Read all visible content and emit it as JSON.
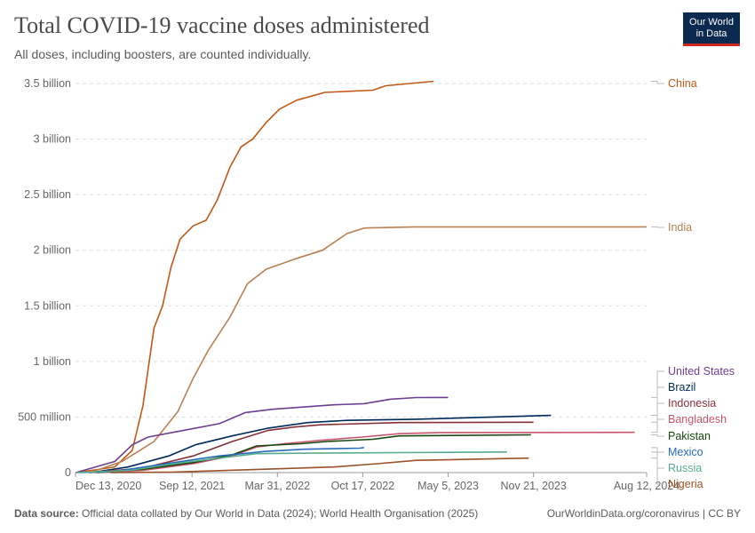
{
  "header": {
    "title": "Total COVID-19 vaccine doses administered",
    "subtitle": "All doses, including boosters, are counted individually.",
    "logo": "Our World in Data"
  },
  "footer": {
    "source_label": "Data source:",
    "source_text": "Official data collated by Our World in Data (2024); World Health Organisation (2025)",
    "right": "OurWorldinData.org/coronavirus | CC BY"
  },
  "chart_data": {
    "type": "line",
    "title": "Total COVID-19 vaccine doses administered",
    "xlim": [
      "2020-12-13",
      "2024-08-12"
    ],
    "ylim": [
      0,
      3.5
    ],
    "y_unit": "billion",
    "x_ticks": [
      {
        "date": "2020-12-13",
        "label": "Dec 13, 2020"
      },
      {
        "date": "2021-09-12",
        "label": "Sep 12, 2021"
      },
      {
        "date": "2022-03-31",
        "label": "Mar 31, 2022"
      },
      {
        "date": "2022-10-17",
        "label": "Oct 17, 2022"
      },
      {
        "date": "2023-05-05",
        "label": "May 5, 2023"
      },
      {
        "date": "2023-11-21",
        "label": "Nov 21, 2023"
      },
      {
        "date": "2024-08-12",
        "label": "Aug 12, 2024"
      }
    ],
    "y_ticks": [
      {
        "v": 0,
        "label": "0"
      },
      {
        "v": 0.5,
        "label": "500 million"
      },
      {
        "v": 1,
        "label": "1 billion"
      },
      {
        "v": 1.5,
        "label": "1.5 billion"
      },
      {
        "v": 2,
        "label": "2 billion"
      },
      {
        "v": 2.5,
        "label": "2.5 billion"
      },
      {
        "v": 3,
        "label": "3 billion"
      },
      {
        "v": 3.5,
        "label": "3.5 billion"
      }
    ],
    "grid": true,
    "legend": "right-labels",
    "series": [
      {
        "name": "China",
        "color": "#c05917",
        "points": [
          [
            "2020-12-15",
            0
          ],
          [
            "2021-03-15",
            0.05
          ],
          [
            "2021-04-25",
            0.2
          ],
          [
            "2021-05-20",
            0.6
          ],
          [
            "2021-06-15",
            1.3
          ],
          [
            "2021-07-05",
            1.5
          ],
          [
            "2021-07-25",
            1.85
          ],
          [
            "2021-08-15",
            2.1
          ],
          [
            "2021-09-15",
            2.22
          ],
          [
            "2021-10-15",
            2.27
          ],
          [
            "2021-11-10",
            2.45
          ],
          [
            "2021-12-10",
            2.75
          ],
          [
            "2022-01-05",
            2.93
          ],
          [
            "2022-02-01",
            3.0
          ],
          [
            "2022-03-05",
            3.15
          ],
          [
            "2022-04-05",
            3.27
          ],
          [
            "2022-05-15",
            3.35
          ],
          [
            "2022-07-20",
            3.42
          ],
          [
            "2022-11-10",
            3.44
          ],
          [
            "2022-12-10",
            3.48
          ],
          [
            "2023-02-05",
            3.5
          ],
          [
            "2023-04-01",
            3.52
          ]
        ]
      },
      {
        "name": "India",
        "color": "#b98052",
        "points": [
          [
            "2021-01-16",
            0
          ],
          [
            "2021-04-01",
            0.1
          ],
          [
            "2021-06-15",
            0.28
          ],
          [
            "2021-08-10",
            0.55
          ],
          [
            "2021-09-15",
            0.85
          ],
          [
            "2021-10-20",
            1.1
          ],
          [
            "2021-12-10",
            1.4
          ],
          [
            "2022-01-20",
            1.7
          ],
          [
            "2022-03-05",
            1.83
          ],
          [
            "2022-05-10",
            1.92
          ],
          [
            "2022-07-15",
            2.0
          ],
          [
            "2022-09-10",
            2.15
          ],
          [
            "2022-10-20",
            2.2
          ],
          [
            "2023-02-15",
            2.21
          ],
          [
            "2024-08-12",
            2.21
          ]
        ]
      },
      {
        "name": "United States",
        "color": "#6d3e91",
        "points": [
          [
            "2020-12-14",
            0
          ],
          [
            "2021-03-15",
            0.1
          ],
          [
            "2021-04-25",
            0.25
          ],
          [
            "2021-06-01",
            0.32
          ],
          [
            "2021-08-10",
            0.37
          ],
          [
            "2021-11-15",
            0.44
          ],
          [
            "2022-01-15",
            0.54
          ],
          [
            "2022-03-20",
            0.57
          ],
          [
            "2022-08-10",
            0.61
          ],
          [
            "2022-10-20",
            0.62
          ],
          [
            "2022-12-20",
            0.66
          ],
          [
            "2023-02-20",
            0.675
          ],
          [
            "2023-05-05",
            0.676
          ]
        ]
      },
      {
        "name": "Brazil",
        "color": "#00295b",
        "points": [
          [
            "2021-01-18",
            0
          ],
          [
            "2021-04-15",
            0.05
          ],
          [
            "2021-07-20",
            0.15
          ],
          [
            "2021-09-20",
            0.25
          ],
          [
            "2021-12-15",
            0.33
          ],
          [
            "2022-03-10",
            0.4
          ],
          [
            "2022-06-10",
            0.45
          ],
          [
            "2022-09-10",
            0.47
          ],
          [
            "2023-02-20",
            0.48
          ],
          [
            "2024-01-01",
            0.515
          ]
        ]
      },
      {
        "name": "Indonesia",
        "color": "#883039",
        "points": [
          [
            "2021-01-13",
            0
          ],
          [
            "2021-05-20",
            0.04
          ],
          [
            "2021-09-15",
            0.15
          ],
          [
            "2021-12-15",
            0.28
          ],
          [
            "2022-03-10",
            0.38
          ],
          [
            "2022-05-10",
            0.41
          ],
          [
            "2022-07-10",
            0.43
          ],
          [
            "2023-01-10",
            0.45
          ],
          [
            "2023-11-21",
            0.453
          ]
        ]
      },
      {
        "name": "Bangladesh",
        "color": "#c9546e",
        "points": [
          [
            "2021-01-27",
            0
          ],
          [
            "2021-05-20",
            0.02
          ],
          [
            "2021-09-15",
            0.08
          ],
          [
            "2021-12-15",
            0.15
          ],
          [
            "2022-02-10",
            0.23
          ],
          [
            "2022-04-15",
            0.26
          ],
          [
            "2022-07-10",
            0.29
          ],
          [
            "2022-10-15",
            0.32
          ],
          [
            "2023-01-10",
            0.35
          ],
          [
            "2023-04-20",
            0.36
          ],
          [
            "2024-07-15",
            0.362
          ]
        ]
      },
      {
        "name": "Pakistan",
        "color": "#18470f",
        "points": [
          [
            "2021-02-02",
            0
          ],
          [
            "2021-05-20",
            0.03
          ],
          [
            "2021-09-15",
            0.09
          ],
          [
            "2021-12-15",
            0.16
          ],
          [
            "2022-02-10",
            0.24
          ],
          [
            "2022-05-25",
            0.26
          ],
          [
            "2022-07-25",
            0.28
          ],
          [
            "2022-11-10",
            0.3
          ],
          [
            "2023-01-10",
            0.33
          ],
          [
            "2023-11-15",
            0.34
          ]
        ]
      },
      {
        "name": "Mexico",
        "color": "#286bbb",
        "points": [
          [
            "2020-12-24",
            0
          ],
          [
            "2021-03-15",
            0.01
          ],
          [
            "2021-08-01",
            0.09
          ],
          [
            "2021-11-15",
            0.15
          ],
          [
            "2022-03-01",
            0.19
          ],
          [
            "2022-06-01",
            0.21
          ],
          [
            "2022-10-10",
            0.22
          ],
          [
            "2022-10-20",
            0.225
          ]
        ]
      },
      {
        "name": "Russia",
        "color": "#58ac8c",
        "points": [
          [
            "2020-12-15",
            0
          ],
          [
            "2021-04-20",
            0.02
          ],
          [
            "2021-08-01",
            0.08
          ],
          [
            "2021-11-15",
            0.13
          ],
          [
            "2022-02-10",
            0.17
          ],
          [
            "2022-06-20",
            0.175
          ],
          [
            "2023-01-10",
            0.18
          ],
          [
            "2023-09-20",
            0.185
          ]
        ]
      },
      {
        "name": "Nigeria",
        "color": "#9a5129",
        "points": [
          [
            "2021-03-05",
            0
          ],
          [
            "2021-08-01",
            0.005
          ],
          [
            "2022-03-01",
            0.03
          ],
          [
            "2022-08-10",
            0.05
          ],
          [
            "2022-11-20",
            0.08
          ],
          [
            "2023-02-20",
            0.11
          ],
          [
            "2023-11-10",
            0.13
          ]
        ]
      }
    ]
  }
}
